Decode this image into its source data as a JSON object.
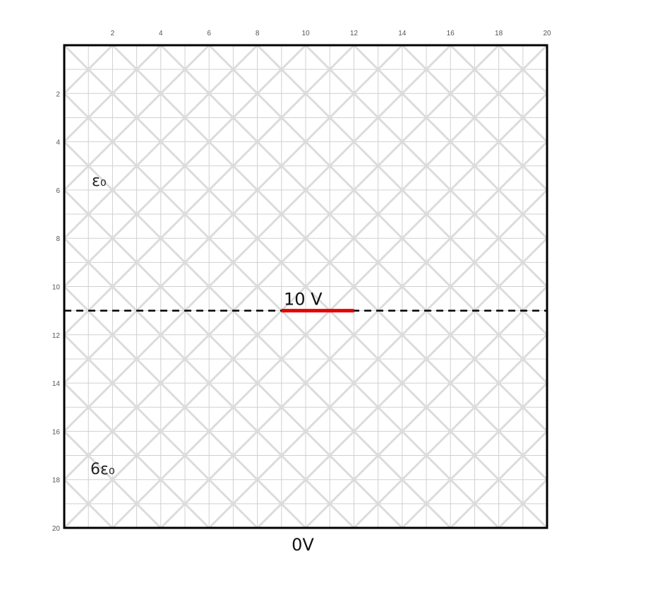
{
  "figure": {
    "x_ticks": [
      "2",
      "4",
      "6",
      "8",
      "10",
      "12",
      "14",
      "16",
      "18",
      "20"
    ],
    "y_ticks": [
      "2",
      "4",
      "6",
      "8",
      "10",
      "12",
      "14",
      "16",
      "18",
      "20"
    ],
    "grid_range": [
      0,
      20
    ],
    "upper_region_label": "ε₀",
    "lower_region_label": "6ε₀",
    "electrode_label": "10 V",
    "bottom_label": "0V",
    "interface_row": 11,
    "electrode_span": [
      9,
      12
    ],
    "colors": {
      "border": "#000000",
      "grid": "#d0d0d0",
      "diagonal": "#dcdcdc",
      "interface": "#000000",
      "electrode": "#e60000"
    }
  }
}
